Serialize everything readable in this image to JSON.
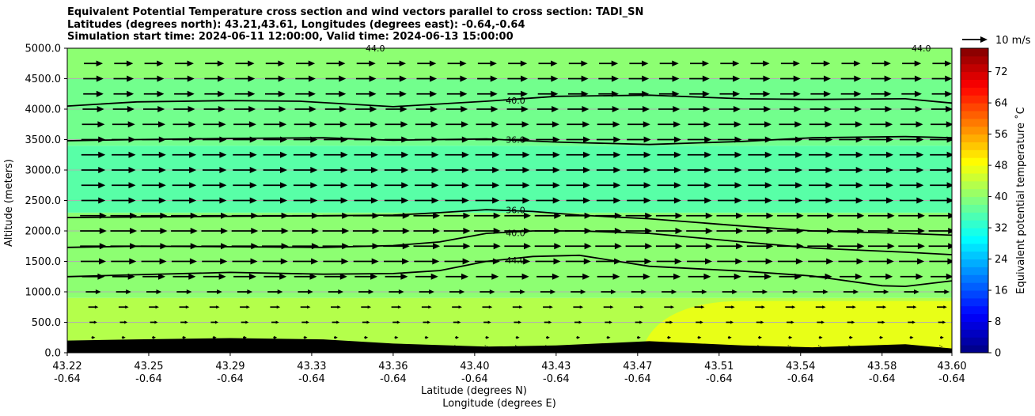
{
  "title_lines": [
    "Equivalent Potential Temperature cross section and wind vectors parallel to cross section: TADI_SN",
    "Latitudes (degrees north): 43.21,43.61, Longitudes (degrees east): -0.64,-0.64",
    "Simulation start time: 2024-06-11 12:00:00, Valid time: 2024-06-13 15:00:00"
  ],
  "chart_data": {
    "type": "heatmap",
    "ylabel": "Altitude (meters)",
    "xlabel_lines": [
      "Latitude (degrees N)",
      "Longitude (degrees E)"
    ],
    "ylim": [
      0,
      5000
    ],
    "yticks": [
      "0.0",
      "500.0",
      "1000.0",
      "1500.0",
      "2000.0",
      "2500.0",
      "3000.0",
      "3500.0",
      "4000.0",
      "4500.0",
      "5000.0"
    ],
    "yticks_values": [
      0,
      500,
      1000,
      1500,
      2000,
      2500,
      3000,
      3500,
      4000,
      4500,
      5000
    ],
    "xticks_lat": [
      "43.22",
      "43.25",
      "43.29",
      "43.33",
      "43.36",
      "43.40",
      "43.43",
      "43.47",
      "43.51",
      "43.54",
      "43.58",
      "43.60"
    ],
    "xticks_lon": [
      "-0.64",
      "-0.64",
      "-0.64",
      "-0.64",
      "-0.64",
      "-0.64",
      "-0.64",
      "-0.64",
      "-0.64",
      "-0.64",
      "-0.64",
      "-0.64"
    ],
    "xticks_values": [
      43.22,
      43.255,
      43.29,
      43.325,
      43.36,
      43.395,
      43.43,
      43.465,
      43.5,
      43.535,
      43.57,
      43.6
    ],
    "xlim": [
      43.22,
      43.6
    ],
    "grid": true,
    "colorbar": {
      "label": "Equivalent potential temperature ˚C",
      "ticks": [
        "0",
        "8",
        "16",
        "24",
        "32",
        "40",
        "48",
        "56",
        "64",
        "72"
      ],
      "tick_values": [
        0,
        8,
        16,
        24,
        32,
        40,
        48,
        56,
        64,
        72
      ],
      "range": [
        0,
        78
      ],
      "colormap": "jet"
    },
    "field_layers": [
      {
        "bottom": 0,
        "top": 900,
        "value": 43
      },
      {
        "bottom": 900,
        "top": 2300,
        "value": 40
      },
      {
        "bottom": 2300,
        "top": 3400,
        "value": 36
      },
      {
        "bottom": 3400,
        "top": 4500,
        "value": 38
      },
      {
        "bottom": 4500,
        "top": 5000,
        "value": 40
      }
    ],
    "warm_surface_patches": [
      {
        "lat_start": 43.47,
        "lat_end": 43.6,
        "top": 850,
        "value": 47
      }
    ],
    "terrain": {
      "lat": [
        43.22,
        43.25,
        43.29,
        43.33,
        43.36,
        43.4,
        43.43,
        43.47,
        43.51,
        43.54,
        43.58,
        43.6
      ],
      "height": [
        200,
        220,
        240,
        220,
        150,
        100,
        120,
        190,
        120,
        90,
        140,
        70
      ]
    },
    "contours": [
      {
        "label": "44.0",
        "lat": [
          43.22,
          43.25,
          43.29,
          43.33,
          43.36,
          43.38,
          43.4,
          43.42,
          43.44,
          43.47,
          43.51,
          43.54,
          43.57,
          43.58,
          43.6
        ],
        "alt": [
          1250,
          1280,
          1320,
          1290,
          1300,
          1350,
          1500,
          1580,
          1600,
          1420,
          1340,
          1260,
          1100,
          1090,
          1180
        ]
      },
      {
        "label": "40.0",
        "lat": [
          43.22,
          43.25,
          43.29,
          43.33,
          43.36,
          43.38,
          43.4,
          43.42,
          43.44,
          43.47,
          43.51,
          43.54,
          43.58,
          43.6
        ],
        "alt": [
          1730,
          1750,
          1740,
          1730,
          1760,
          1820,
          1960,
          2000,
          2000,
          1960,
          1820,
          1720,
          1650,
          1610
        ]
      },
      {
        "label": "36.0",
        "lat": [
          43.22,
          43.25,
          43.29,
          43.33,
          43.36,
          43.38,
          43.4,
          43.42,
          43.44,
          43.47,
          43.51,
          43.54,
          43.58,
          43.6
        ],
        "alt": [
          2220,
          2230,
          2240,
          2250,
          2260,
          2300,
          2350,
          2320,
          2260,
          2200,
          2080,
          2000,
          1960,
          1930
        ]
      },
      {
        "label": "36.0",
        "lat": [
          43.22,
          43.25,
          43.29,
          43.33,
          43.36,
          43.4,
          43.43,
          43.47,
          43.51,
          43.54,
          43.58,
          43.6
        ],
        "alt": [
          3480,
          3500,
          3520,
          3530,
          3490,
          3510,
          3460,
          3420,
          3470,
          3530,
          3550,
          3530
        ]
      },
      {
        "label": "40.0",
        "lat": [
          43.22,
          43.25,
          43.29,
          43.32,
          43.36,
          43.4,
          43.43,
          43.47,
          43.51,
          43.54,
          43.58,
          43.6
        ],
        "alt": [
          4050,
          4120,
          4140,
          4130,
          4040,
          4130,
          4210,
          4230,
          4170,
          4160,
          4170,
          4100
        ]
      }
    ],
    "top_labels": [
      "44.0",
      "44.0"
    ],
    "quiver_key": {
      "label": "10 m/s",
      "speed": 10
    },
    "wind": {
      "levels": [
        100,
        250,
        500,
        750,
        1000,
        1250,
        1500,
        1750,
        2000,
        2250,
        2500,
        2750,
        3000,
        3250,
        3500,
        3750,
        4000,
        4250,
        4500,
        4750
      ],
      "speeds": [
        0.5,
        1.5,
        3,
        4,
        6,
        9,
        10,
        10.5,
        10.5,
        10.5,
        9.5,
        9.5,
        9.5,
        9.5,
        9.5,
        9,
        8.5,
        8,
        8,
        7.5
      ]
    }
  }
}
